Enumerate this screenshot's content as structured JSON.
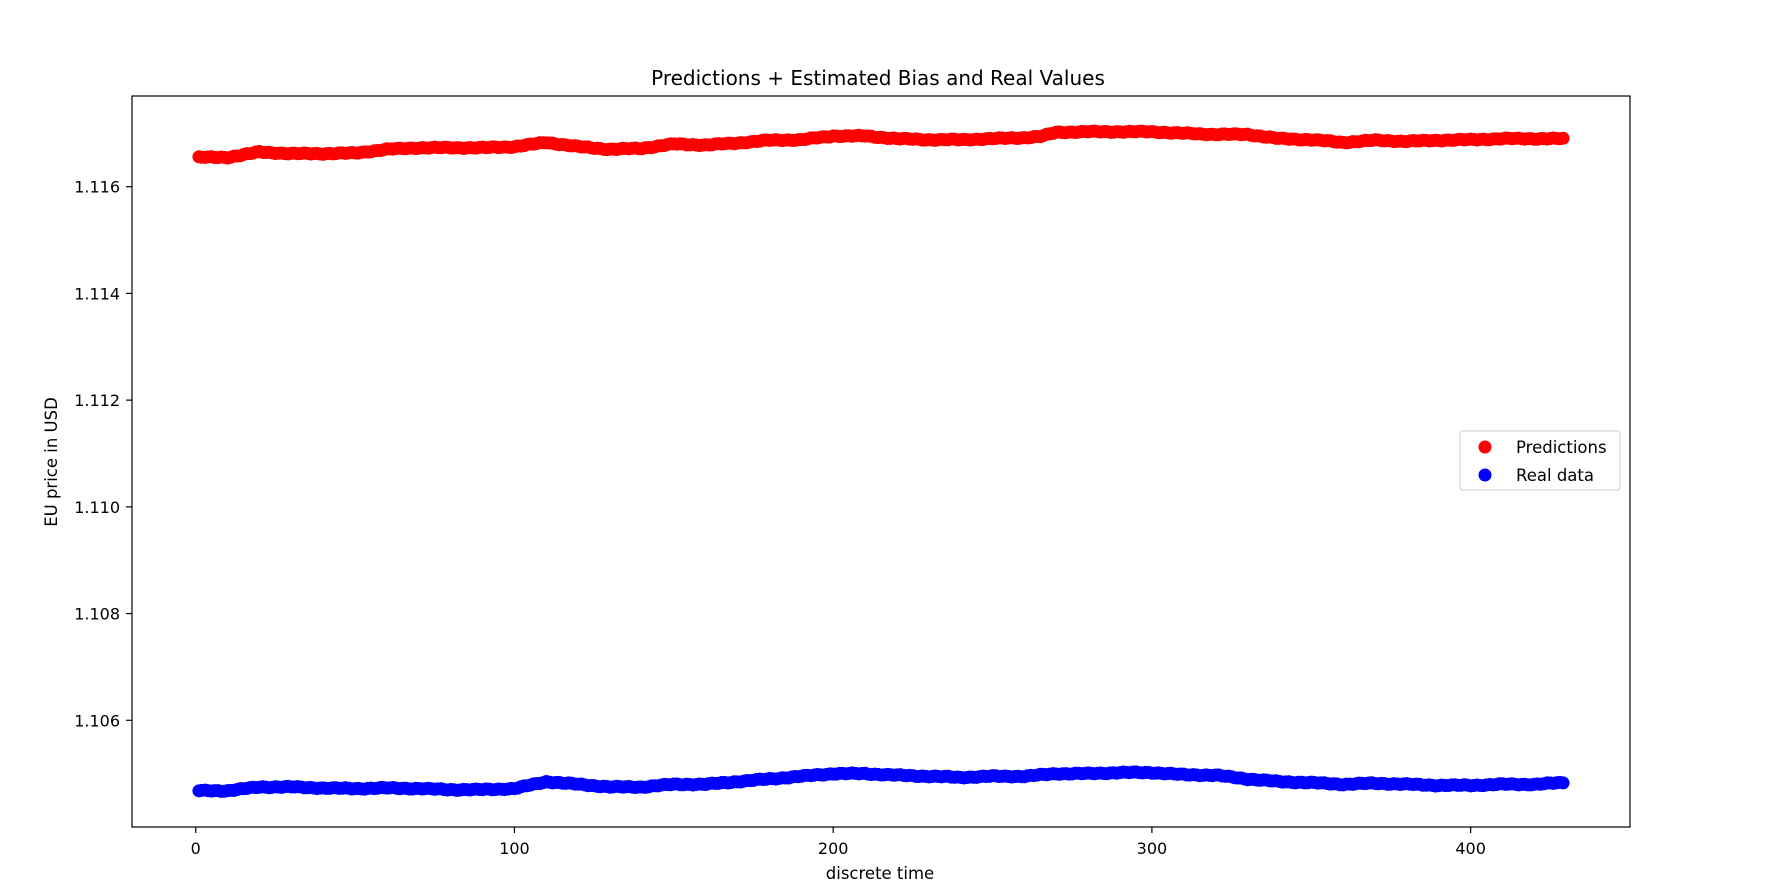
{
  "chart_data": {
    "type": "scatter",
    "title": "Predictions + Estimated Bias and Real Values",
    "xlabel": "discrete time",
    "ylabel": "EU price in USD",
    "xlim": [
      -20,
      450
    ],
    "ylim": [
      1.104,
      1.1177
    ],
    "xticks": [
      0,
      100,
      200,
      300,
      400
    ],
    "xtick_labels": [
      "0",
      "100",
      "200",
      "300",
      "400"
    ],
    "yticks": [
      1.106,
      1.108,
      1.11,
      1.112,
      1.114,
      1.116
    ],
    "ytick_labels": [
      "1.106",
      "1.108",
      "1.110",
      "1.112",
      "1.114",
      "1.116"
    ],
    "grid": false,
    "legend_position": "center-right",
    "series": [
      {
        "name": "Predictions",
        "color": "#ff0000",
        "x": [
          1,
          10,
          20,
          30,
          40,
          50,
          60,
          70,
          80,
          90,
          100,
          110,
          120,
          130,
          140,
          150,
          160,
          170,
          180,
          190,
          200,
          210,
          220,
          230,
          240,
          250,
          260,
          265,
          270,
          280,
          290,
          300,
          310,
          320,
          330,
          340,
          350,
          360,
          370,
          380,
          390,
          400,
          410,
          420,
          429
        ],
        "y": [
          1.11655,
          1.11655,
          1.11665,
          1.11662,
          1.11662,
          1.11663,
          1.1167,
          1.11673,
          1.11673,
          1.11673,
          1.11675,
          1.11683,
          1.11675,
          1.1167,
          1.11672,
          1.1168,
          1.11678,
          1.11682,
          1.11687,
          1.11688,
          1.11695,
          1.11695,
          1.1169,
          1.11688,
          1.11688,
          1.1169,
          1.11692,
          1.11694,
          1.11702,
          1.11703,
          1.11703,
          1.11703,
          1.117,
          1.11698,
          1.11698,
          1.1169,
          1.11688,
          1.11683,
          1.11687,
          1.11685,
          1.11687,
          1.11688,
          1.1169,
          1.1169,
          1.1169
        ]
      },
      {
        "name": "Real data",
        "color": "#0000ff",
        "x": [
          1,
          10,
          20,
          30,
          40,
          50,
          60,
          70,
          80,
          90,
          100,
          110,
          120,
          130,
          140,
          150,
          160,
          170,
          180,
          190,
          200,
          210,
          220,
          230,
          240,
          250,
          260,
          270,
          280,
          290,
          300,
          310,
          320,
          330,
          340,
          350,
          360,
          370,
          380,
          390,
          400,
          410,
          420,
          429
        ],
        "y": [
          1.10468,
          1.10468,
          1.10475,
          1.10475,
          1.10473,
          1.10472,
          1.10473,
          1.10472,
          1.1047,
          1.1047,
          1.10472,
          1.10485,
          1.1048,
          1.10475,
          1.10475,
          1.1048,
          1.1048,
          1.10485,
          1.1049,
          1.10495,
          1.105,
          1.105,
          1.10497,
          1.10495,
          1.10493,
          1.10495,
          1.10495,
          1.105,
          1.105,
          1.10502,
          1.10502,
          1.10498,
          1.10497,
          1.1049,
          1.10485,
          1.10483,
          1.1048,
          1.10482,
          1.1048,
          1.10478,
          1.10478,
          1.1048,
          1.1048,
          1.10483
        ]
      }
    ]
  }
}
